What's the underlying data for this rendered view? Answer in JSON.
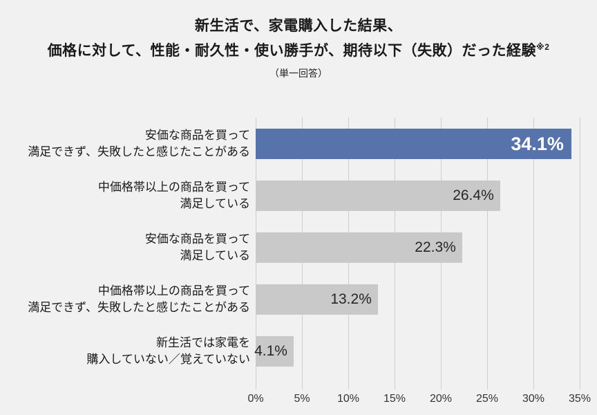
{
  "title": {
    "line1": "新生活で、家電購入した結果、",
    "line2": "価格に対して、性能・耐久性・使い勝手が、期待以下（失敗）だった経験",
    "line2_superscript": "※2",
    "subtitle": "（単一回答）"
  },
  "colors": {
    "background": "#f1f1f2",
    "highlight_bar": "#5673ab",
    "bar": "#c9c9ca",
    "gridline": "#cdcdce",
    "text": "#1a1a1a",
    "value_on_highlight": "#ffffff"
  },
  "chart_data": {
    "type": "bar",
    "orientation": "horizontal",
    "title": "新生活で、家電購入した結果、価格に対して、性能・耐久性・使い勝手が、期待以下（失敗）だった経験※2",
    "subtitle": "（単一回答）",
    "categories": [
      "安価な商品を買って満足できず、失敗したと感じたことがある",
      "中価格帯以上の商品を買って満足している",
      "安価な商品を買って満足している",
      "中価格帯以上の商品を買って満足できず、失敗したと感じたことがある",
      "新生活では家電を購入していない／覚えていない"
    ],
    "category_lines": [
      [
        "安価な商品を買って",
        "満足できず、失敗したと感じたことがある"
      ],
      [
        "中価格帯以上の商品を買って",
        "満足している"
      ],
      [
        "安価な商品を買って",
        "満足している"
      ],
      [
        "中価格帯以上の商品を買って",
        "満足できず、失敗したと感じたことがある"
      ],
      [
        "新生活では家電を",
        "購入していない／覚えていない"
      ]
    ],
    "values": [
      34.1,
      26.4,
      22.3,
      13.2,
      4.1
    ],
    "value_labels": [
      "34.1%",
      "26.4%",
      "22.3%",
      "13.2%",
      "4.1%"
    ],
    "highlighted_index": 0,
    "xlim": [
      0,
      35
    ],
    "x_ticks": [
      "0%",
      "5%",
      "10%",
      "15%",
      "20%",
      "25%",
      "30%",
      "35%"
    ],
    "grid": true,
    "legend": false
  }
}
